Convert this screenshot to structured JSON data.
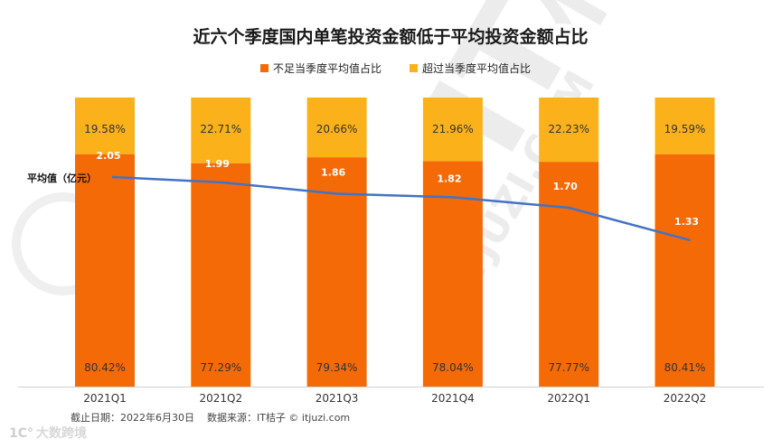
{
  "chart_data": {
    "type": "bar",
    "title": "近六个季度国内单笔投资金额低于平均投资金额占比",
    "categories": [
      "2021Q1",
      "2021Q2",
      "2021Q3",
      "2021Q4",
      "2022Q1",
      "2022Q2"
    ],
    "series": [
      {
        "name": "不足当季度平均值占比",
        "color": "#f46a07",
        "values": [
          80.42,
          77.29,
          79.34,
          78.04,
          77.77,
          80.41
        ],
        "labels": [
          "80.42%",
          "77.29%",
          "79.34%",
          "78.04%",
          "77.77%",
          "80.41%"
        ]
      },
      {
        "name": "超过当季度平均值占比",
        "color": "#fbb11a",
        "values": [
          19.58,
          22.71,
          20.66,
          21.96,
          22.23,
          19.59
        ],
        "labels": [
          "19.58%",
          "22.71%",
          "20.66%",
          "21.96%",
          "22.23%",
          "19.59%"
        ]
      }
    ],
    "line": {
      "name": "平均值（亿元）",
      "color": "#4472c4",
      "values": [
        2.05,
        1.99,
        1.86,
        1.82,
        1.7,
        1.33
      ],
      "labels": [
        "2.05",
        "1.99",
        "1.86",
        "1.82",
        "1.70",
        "1.33"
      ]
    },
    "ylim": [
      0,
      100
    ],
    "legend_position": "top-center"
  },
  "footer": {
    "note": "截止日期：2022年6月30日    数据来源：IT桔子 © itjuzi.com",
    "logo": "大数跨境"
  },
  "watermark": {
    "text": "IT桔子",
    "sub": "ITJUZI.COM"
  }
}
